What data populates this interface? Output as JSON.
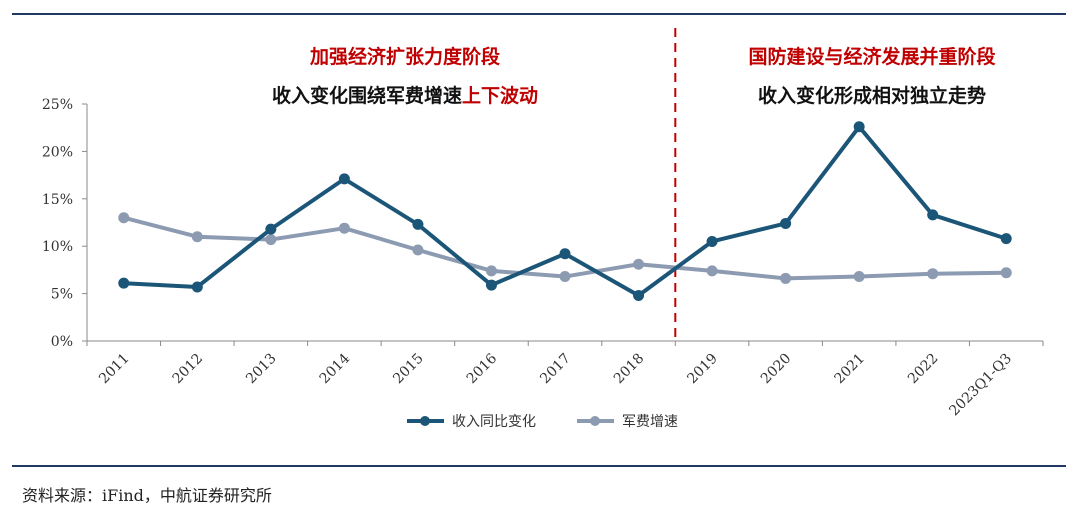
{
  "phase_annotations": {
    "left_title": "加强经济扩张力度阶段",
    "left_subtitle_prefix": "收入变化围绕军费增速",
    "left_subtitle_highlight": "上下波动",
    "right_title": "国防建设与经济发展并重阶段",
    "right_subtitle": "收入变化形成相对独立走势"
  },
  "source_text": "资料来源：iFind，中航证券研究所",
  "colors": {
    "income_series": "#1b5577",
    "budget_series": "#8c9bb1",
    "highlight_red": "#c00000",
    "divider": "#c00000",
    "rule": "#1f3864"
  },
  "chart_data": {
    "type": "line",
    "categories": [
      "2011",
      "2012",
      "2013",
      "2014",
      "2015",
      "2016",
      "2017",
      "2018",
      "2019",
      "2020",
      "2021",
      "2022",
      "2023Q1-Q3"
    ],
    "series": [
      {
        "name": "收入同比变化",
        "values": [
          6.1,
          5.7,
          11.8,
          17.1,
          12.3,
          5.9,
          9.2,
          4.8,
          10.5,
          12.4,
          22.6,
          13.3,
          10.8
        ]
      },
      {
        "name": "军费增速",
        "values": [
          13.0,
          11.0,
          10.7,
          11.9,
          9.6,
          7.4,
          6.8,
          8.1,
          7.4,
          6.6,
          6.8,
          7.1,
          7.2
        ]
      }
    ],
    "yticks": [
      "0%",
      "5%",
      "10%",
      "15%",
      "20%",
      "25%"
    ],
    "ylim": [
      0,
      25
    ],
    "divider_between": [
      "2018",
      "2019"
    ],
    "legend_position": "bottom-center",
    "grid": false
  }
}
